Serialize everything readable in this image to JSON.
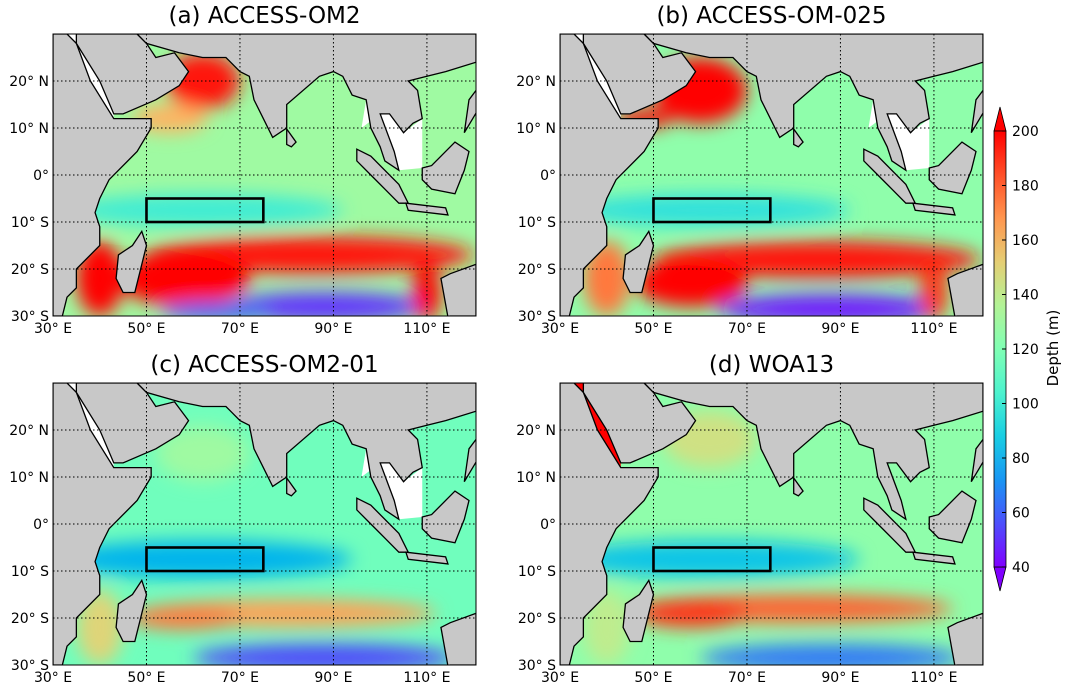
{
  "chart_data": {
    "type": "heatmap",
    "colorbar": {
      "label": "Depth (m)",
      "range": [
        40,
        200
      ],
      "ticks": [
        "40",
        "60",
        "80",
        "100",
        "120",
        "140",
        "160",
        "180",
        "200"
      ],
      "colormap": "rainbow",
      "extend": "both"
    },
    "lon_ticks": [
      "30° E",
      "50° E",
      "70° E",
      "90° E",
      "110° E"
    ],
    "lat_ticks": [
      "30° S",
      "20° S",
      "10° S",
      "0°",
      "10° N",
      "20° N"
    ],
    "lon_range": [
      30,
      120.5
    ],
    "lat_range": [
      -30,
      30
    ],
    "grid": "dotted",
    "box_region": {
      "lon": [
        50,
        75
      ],
      "lat": [
        -10,
        -5
      ]
    },
    "land_color": "#c8c8c8",
    "panels": [
      {
        "title": "(a) ACCESS-OM2",
        "base_depth": 130,
        "features": [
          {
            "lon": 62,
            "lat": 20,
            "rlon": 8,
            "rlat": 6,
            "depth": 195
          },
          {
            "lon": 55,
            "lat": 12,
            "rlon": 8,
            "rlat": 3,
            "depth": 160
          },
          {
            "lon": 62,
            "lat": -7.5,
            "rlon": 30,
            "rlat": 3.5,
            "depth": 100
          },
          {
            "lon": 85,
            "lat": -17,
            "rlon": 35,
            "rlat": 4,
            "depth": 195
          },
          {
            "lon": 58,
            "lat": -22,
            "rlon": 14,
            "rlat": 6,
            "depth": 200
          },
          {
            "lon": 40,
            "lat": -22,
            "rlon": 5,
            "rlat": 8,
            "depth": 200
          },
          {
            "lon": 88,
            "lat": -28,
            "rlon": 22,
            "rlat": 3,
            "depth": 50
          },
          {
            "lon": 65,
            "lat": -29,
            "rlon": 12,
            "rlat": 2,
            "depth": 60
          },
          {
            "lon": 110,
            "lat": -25,
            "rlon": 3,
            "rlat": 6,
            "depth": 200
          }
        ]
      },
      {
        "title": "(b) ACCESS-OM-025",
        "base_depth": 125,
        "features": [
          {
            "lon": 60,
            "lat": 18,
            "rlon": 10,
            "rlat": 7,
            "depth": 200
          },
          {
            "lon": 48,
            "lat": 12,
            "rlon": 6,
            "rlat": 2,
            "depth": 200
          },
          {
            "lon": 62,
            "lat": -7.5,
            "rlon": 30,
            "rlat": 3.5,
            "depth": 95
          },
          {
            "lon": 85,
            "lat": -18,
            "rlon": 35,
            "rlat": 4,
            "depth": 195
          },
          {
            "lon": 58,
            "lat": -23,
            "rlon": 12,
            "rlat": 5,
            "depth": 200
          },
          {
            "lon": 40,
            "lat": -22,
            "rlon": 5,
            "rlat": 8,
            "depth": 175
          },
          {
            "lon": 88,
            "lat": -28.5,
            "rlon": 24,
            "rlat": 3,
            "depth": 45
          },
          {
            "lon": 110,
            "lat": -25,
            "rlon": 3,
            "rlat": 6,
            "depth": 190
          }
        ]
      },
      {
        "title": "(c) ACCESS-OM2-01",
        "base_depth": 115,
        "features": [
          {
            "lon": 62,
            "lat": 15,
            "rlon": 10,
            "rlat": 6,
            "depth": 130
          },
          {
            "lon": 62,
            "lat": -7.5,
            "rlon": 32,
            "rlat": 4,
            "depth": 80
          },
          {
            "lon": 80,
            "lat": -19,
            "rlon": 32,
            "rlat": 3,
            "depth": 165
          },
          {
            "lon": 58,
            "lat": -20,
            "rlon": 12,
            "rlat": 2.5,
            "depth": 175
          },
          {
            "lon": 88,
            "lat": -28.5,
            "rlon": 28,
            "rlat": 3,
            "depth": 55
          },
          {
            "lon": 40,
            "lat": -22,
            "rlon": 5,
            "rlat": 8,
            "depth": 150
          }
        ]
      },
      {
        "title": "(d) WOA13",
        "base_depth": 125,
        "features": [
          {
            "lon": 62,
            "lat": 18,
            "rlon": 10,
            "rlat": 6,
            "depth": 145
          },
          {
            "lon": 62,
            "lat": -7.5,
            "rlon": 32,
            "rlat": 4,
            "depth": 85
          },
          {
            "lon": 80,
            "lat": -18,
            "rlon": 34,
            "rlat": 3,
            "depth": 180
          },
          {
            "lon": 58,
            "lat": -19,
            "rlon": 12,
            "rlat": 3,
            "depth": 190
          },
          {
            "lon": 88,
            "lat": -28.5,
            "rlon": 28,
            "rlat": 3,
            "depth": 65
          },
          {
            "lon": 40,
            "lat": -22,
            "rlon": 5,
            "rlat": 8,
            "depth": 140
          }
        ]
      }
    ]
  }
}
